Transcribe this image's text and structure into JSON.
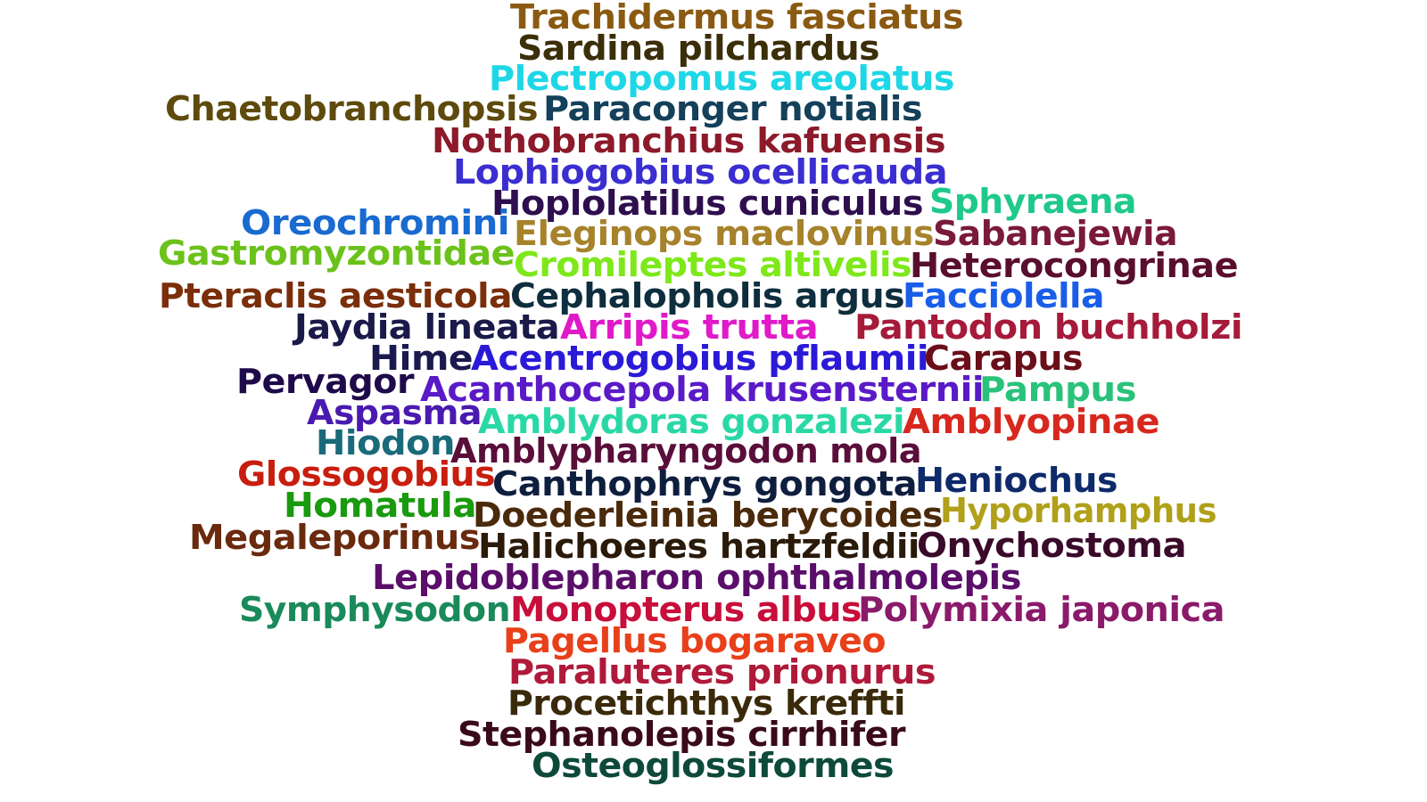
{
  "word_cloud": {
    "words": [
      {
        "text": "Trachidermus fasciatus",
        "color": "#8a5a12"
      },
      {
        "text": "Sardina pilchardus",
        "color": "#3b2f0a"
      },
      {
        "text": "Plectropomus areolatus",
        "color": "#1ed7e6"
      },
      {
        "text": "Chaetobranchopsis",
        "color": "#5e4a0c"
      },
      {
        "text": "Paraconger notialis",
        "color": "#14405a"
      },
      {
        "text": "Nothobranchius kafuensis",
        "color": "#8c1a2a"
      },
      {
        "text": "Lophiogobius ocellicauda",
        "color": "#3a2ed0"
      },
      {
        "text": "Hoplolatilus cuniculus",
        "color": "#2e0e4e"
      },
      {
        "text": "Sphyraena",
        "color": "#1fc98c"
      },
      {
        "text": "Oreochromini",
        "color": "#1a6ad0"
      },
      {
        "text": "Eleginops maclovinus",
        "color": "#a6822a"
      },
      {
        "text": "Sabanejewia",
        "color": "#7a1a3a"
      },
      {
        "text": "Gastromyzontidae",
        "color": "#6bc21a"
      },
      {
        "text": "Cromileptes altivelis",
        "color": "#7ee81a"
      },
      {
        "text": "Heterocongrinae",
        "color": "#5a0e2e"
      },
      {
        "text": "Pteraclis aesticola",
        "color": "#7a2e0a"
      },
      {
        "text": "Cephalopholis argus",
        "color": "#0e2e3e"
      },
      {
        "text": "Facciolella",
        "color": "#1a5ee8"
      },
      {
        "text": "Jaydia lineata",
        "color": "#1a1a4a"
      },
      {
        "text": "Arripis trutta",
        "color": "#e01ac8"
      },
      {
        "text": "Pantodon buchholzi",
        "color": "#a61a3a"
      },
      {
        "text": "Hime",
        "color": "#1a1a4e"
      },
      {
        "text": "Acentrogobius pflaumii",
        "color": "#2a1ad8"
      },
      {
        "text": "Carapus",
        "color": "#6a0e1a"
      },
      {
        "text": "Pervagor",
        "color": "#1e0a4a"
      },
      {
        "text": "Acanthocepola krusensternii",
        "color": "#5a1ac8"
      },
      {
        "text": "Pampus",
        "color": "#2ac27a"
      },
      {
        "text": "Aspasma",
        "color": "#4a1ab0"
      },
      {
        "text": "Amblydoras gonzalezi",
        "color": "#2ad8a6"
      },
      {
        "text": "Amblyopinae",
        "color": "#d8281e"
      },
      {
        "text": "Hiodon",
        "color": "#1a6a7a"
      },
      {
        "text": "Amblypharyngodon mola",
        "color": "#5a0e3a"
      },
      {
        "text": "Glossogobius",
        "color": "#c81e0e"
      },
      {
        "text": "Canthophrys gongota",
        "color": "#0e1e3e"
      },
      {
        "text": "Heniochus",
        "color": "#0e2a6a"
      },
      {
        "text": "Homatula",
        "color": "#1a9a0e"
      },
      {
        "text": "Doederleinia berycoides",
        "color": "#4a2a0a"
      },
      {
        "text": "Hyporhamphus",
        "color": "#b0a01a"
      },
      {
        "text": "Megaleporinus",
        "color": "#6a2a0e"
      },
      {
        "text": "Halichoeres hartzfeldii",
        "color": "#2a1a0a"
      },
      {
        "text": "Onychostoma",
        "color": "#3a0a2a"
      },
      {
        "text": "Lepidoblepharon ophthalmolepis",
        "color": "#5a0e6a"
      },
      {
        "text": "Symphysodon",
        "color": "#1a8a5a"
      },
      {
        "text": "Monopterus albus",
        "color": "#c80e3a"
      },
      {
        "text": "Polymixia japonica",
        "color": "#8a1a6a"
      },
      {
        "text": "Pagellus bogaraveo",
        "color": "#e8401a"
      },
      {
        "text": "Paraluteres prionurus",
        "color": "#b01a3a"
      },
      {
        "text": "Procetichthys kreffti",
        "color": "#3a2a0a"
      },
      {
        "text": "Stephanolepis cirrhifer",
        "color": "#3a0a1a"
      },
      {
        "text": "Osteoglossiformes",
        "color": "#0e4a3a"
      }
    ]
  }
}
